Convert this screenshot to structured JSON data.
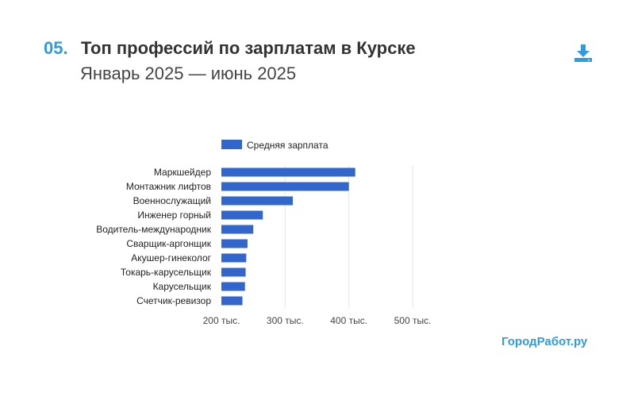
{
  "header": {
    "number": "05.",
    "title": "Топ профессий по зарплатам в Курске",
    "subtitle": "Январь 2025 — июнь 2025"
  },
  "brand": "ГородРабот.ру",
  "icons": {
    "download": "download-icon"
  },
  "colors": {
    "accent": "#2f9be0",
    "bar": "#3366cc",
    "grid": "#e6e6e6"
  },
  "chart_data": {
    "type": "bar",
    "orientation": "horizontal",
    "categories": [
      "Маркшейдер",
      "Монтажник лифтов",
      "Военнослужащий",
      "Инженер горный",
      "Водитель-международник",
      "Сварщик-аргонщик",
      "Акушер-гинеколог",
      "Токарь-карусельщик",
      "Карусельщик",
      "Счетчик-ревизор"
    ],
    "series": [
      {
        "name": "Средняя зарплата",
        "values": [
          410000,
          400000,
          312000,
          265000,
          250000,
          241000,
          239000,
          238000,
          237000,
          233000
        ]
      }
    ],
    "xlim": [
      200000,
      500000
    ],
    "xticks": [
      200000,
      300000,
      400000,
      500000
    ],
    "xtick_labels": [
      "200 тыс.",
      "300 тыс.",
      "400 тыс.",
      "500 тыс."
    ],
    "legend": "top",
    "grid": true
  }
}
